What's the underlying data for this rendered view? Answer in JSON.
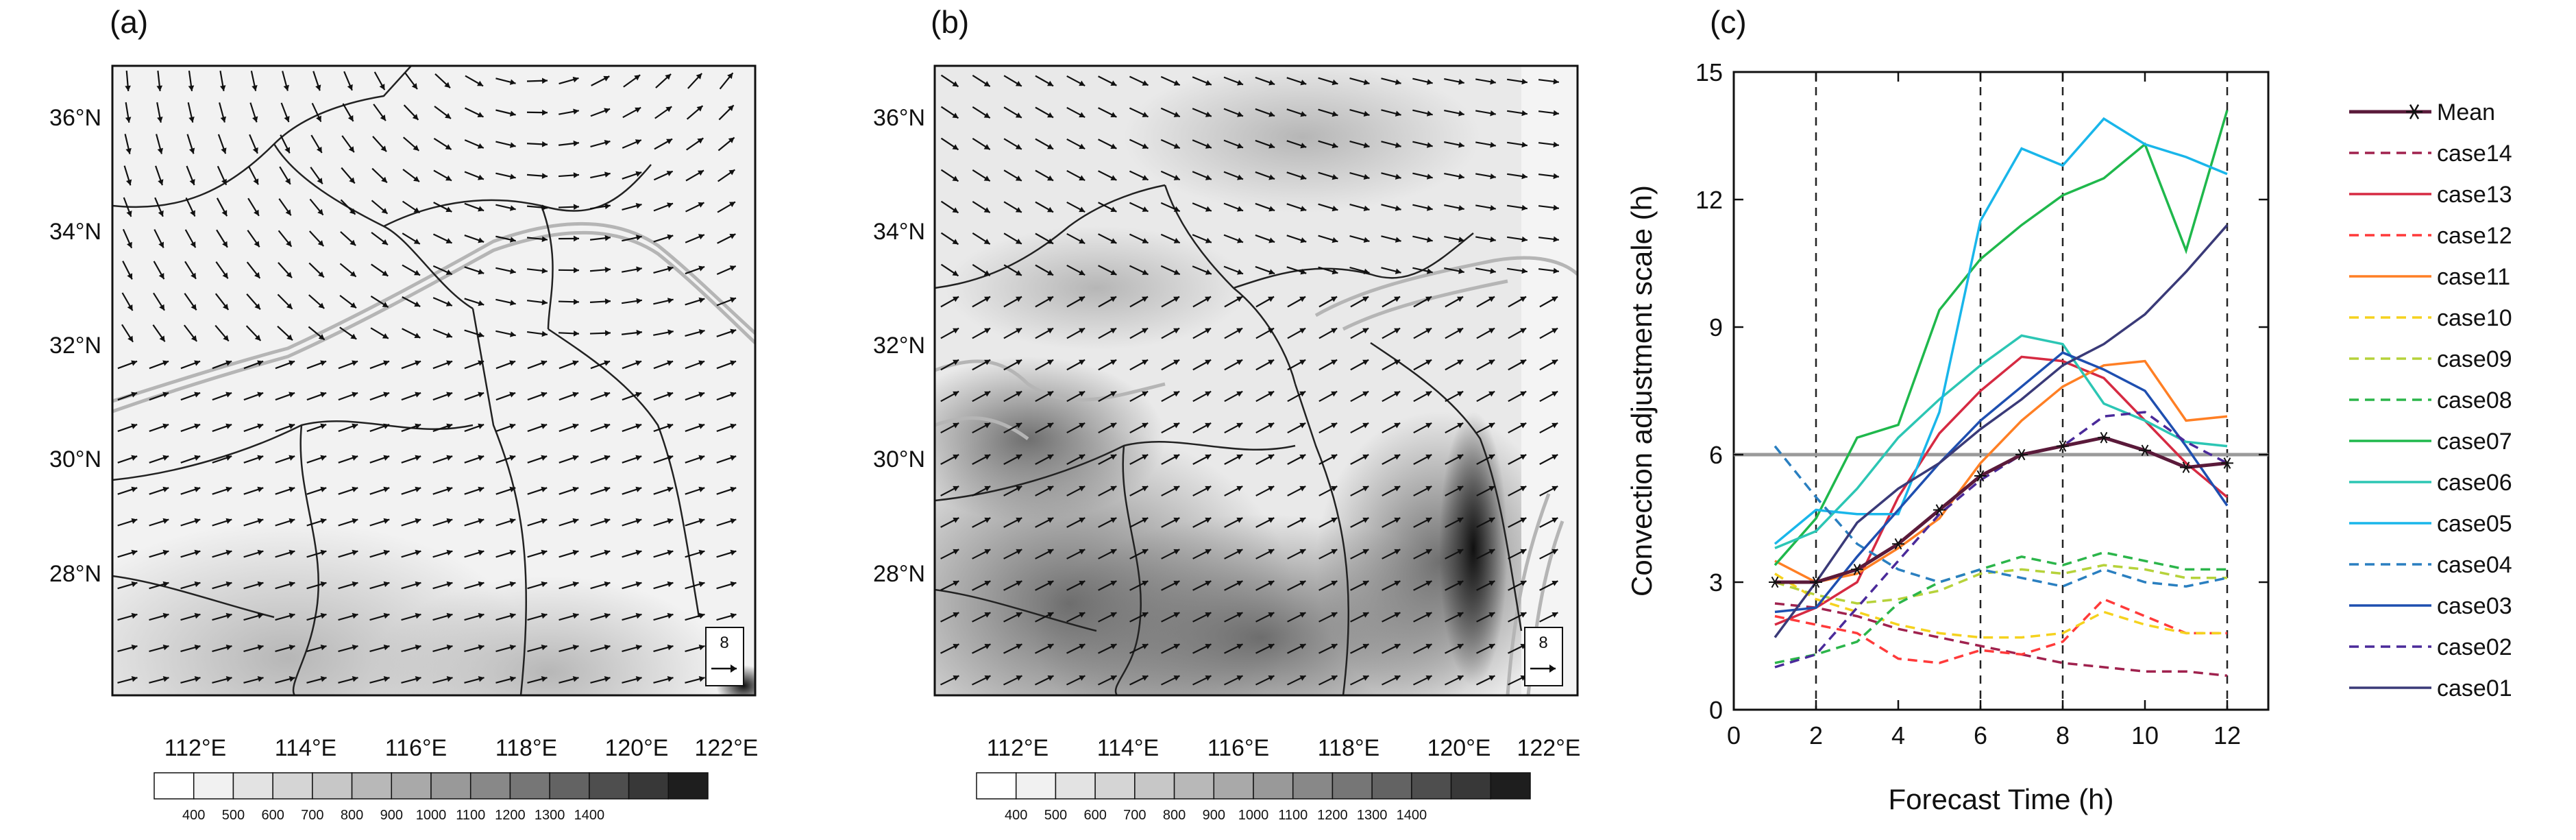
{
  "panels": {
    "a": {
      "label": "(a)"
    },
    "b": {
      "label": "(b)"
    },
    "c": {
      "label": "(c)"
    }
  },
  "map_axes": {
    "lat_labels": [
      "36°N",
      "34°N",
      "32°N",
      "30°N",
      "28°N"
    ],
    "lon_labels": [
      "112°E",
      "114°E",
      "116°E",
      "118°E",
      "120°E",
      "122°E"
    ]
  },
  "colorbar": {
    "labels": [
      "400",
      "500",
      "600",
      "700",
      "800",
      "900",
      "1000",
      "1100",
      "1200",
      "1300",
      "1400"
    ],
    "colors": [
      "#ffffff",
      "#f1f1f1",
      "#e3e3e3",
      "#d5d5d5",
      "#c7c7c7",
      "#b8b8b8",
      "#a9a9a9",
      "#999999",
      "#888888",
      "#767676",
      "#636363",
      "#4e4e4e",
      "#383838",
      "#1e1e1e"
    ]
  },
  "vector_reference": {
    "label": "8"
  },
  "chart_data": {
    "type": "line",
    "xlabel": "Forecast Time (h)",
    "ylabel": "Convection adjustment scale (h)",
    "xlim": [
      0,
      13
    ],
    "ylim": [
      0,
      15
    ],
    "xticks": [
      0,
      2,
      4,
      6,
      8,
      10,
      12
    ],
    "yticks": [
      0,
      3,
      6,
      9,
      12,
      15
    ],
    "vlines": [
      2,
      6,
      8,
      12
    ],
    "hline": 6,
    "legend_position": "right",
    "x": [
      1,
      2,
      3,
      4,
      5,
      6,
      7,
      8,
      9,
      10,
      11,
      12
    ],
    "series": [
      {
        "name": "Mean",
        "color": "#5a1a3a",
        "dash": false,
        "marker": "asterisk",
        "values": [
          3.0,
          3.0,
          3.3,
          3.9,
          4.7,
          5.5,
          6.0,
          6.2,
          6.4,
          6.1,
          5.7,
          5.8
        ]
      },
      {
        "name": "case14",
        "color": "#a0224e",
        "dash": true,
        "values": [
          2.5,
          2.4,
          2.2,
          1.9,
          1.7,
          1.5,
          1.3,
          1.1,
          1.0,
          0.9,
          0.9,
          0.8
        ]
      },
      {
        "name": "case13",
        "color": "#d62a42",
        "dash": false,
        "values": [
          2.0,
          2.4,
          3.0,
          5.0,
          6.5,
          7.5,
          8.3,
          8.2,
          7.8,
          6.8,
          5.8,
          5.0
        ]
      },
      {
        "name": "case12",
        "color": "#ff3a3a",
        "dash": true,
        "values": [
          2.2,
          2.0,
          1.8,
          1.2,
          1.1,
          1.4,
          1.3,
          1.6,
          2.6,
          2.2,
          1.8,
          1.8
        ]
      },
      {
        "name": "case11",
        "color": "#ff7f24",
        "dash": false,
        "values": [
          3.5,
          3.0,
          3.2,
          3.8,
          4.5,
          5.8,
          6.8,
          7.6,
          8.1,
          8.2,
          6.8,
          6.9
        ]
      },
      {
        "name": "case10",
        "color": "#f5d21e",
        "dash": true,
        "values": [
          3.2,
          2.6,
          2.3,
          2.0,
          1.8,
          1.7,
          1.7,
          1.8,
          2.3,
          2.0,
          1.8,
          1.8
        ]
      },
      {
        "name": "case09",
        "color": "#b6d23a",
        "dash": true,
        "values": [
          3.0,
          2.7,
          2.5,
          2.6,
          2.8,
          3.2,
          3.3,
          3.2,
          3.4,
          3.3,
          3.1,
          3.1
        ]
      },
      {
        "name": "case08",
        "color": "#2bb54a",
        "dash": true,
        "values": [
          1.1,
          1.3,
          1.6,
          2.5,
          3.0,
          3.3,
          3.6,
          3.4,
          3.7,
          3.5,
          3.3,
          3.3
        ]
      },
      {
        "name": "case07",
        "color": "#1fb84c",
        "dash": false,
        "values": [
          3.4,
          4.5,
          6.4,
          6.7,
          9.4,
          10.6,
          11.4,
          12.1,
          12.5,
          13.3,
          10.8,
          14.1
        ]
      },
      {
        "name": "case06",
        "color": "#2cc6b4",
        "dash": false,
        "values": [
          3.8,
          4.2,
          5.2,
          6.4,
          7.3,
          8.1,
          8.8,
          8.6,
          7.2,
          6.8,
          6.3,
          6.2
        ]
      },
      {
        "name": "case05",
        "color": "#19b6ea",
        "dash": false,
        "values": [
          3.9,
          4.7,
          4.6,
          4.6,
          7.0,
          11.5,
          13.2,
          12.8,
          13.9,
          13.3,
          13.0,
          12.6
        ]
      },
      {
        "name": "case04",
        "color": "#2a7fc0",
        "dash": true,
        "values": [
          6.2,
          5.0,
          3.9,
          3.3,
          3.0,
          3.3,
          3.1,
          2.9,
          3.3,
          3.0,
          2.9,
          3.1
        ]
      },
      {
        "name": "case03",
        "color": "#1e4fb0",
        "dash": false,
        "values": [
          2.3,
          2.4,
          3.6,
          4.7,
          5.8,
          6.8,
          7.6,
          8.4,
          8.0,
          7.5,
          6.2,
          4.8
        ]
      },
      {
        "name": "case02",
        "color": "#4a2a9a",
        "dash": true,
        "values": [
          1.0,
          1.3,
          2.4,
          3.5,
          4.6,
          5.4,
          6.0,
          6.2,
          6.9,
          7.0,
          6.3,
          5.8
        ]
      },
      {
        "name": "case01",
        "color": "#3a3a78",
        "dash": false,
        "values": [
          1.7,
          3.0,
          4.4,
          5.2,
          5.8,
          6.6,
          7.3,
          8.1,
          8.6,
          9.3,
          10.3,
          11.4
        ]
      }
    ]
  }
}
